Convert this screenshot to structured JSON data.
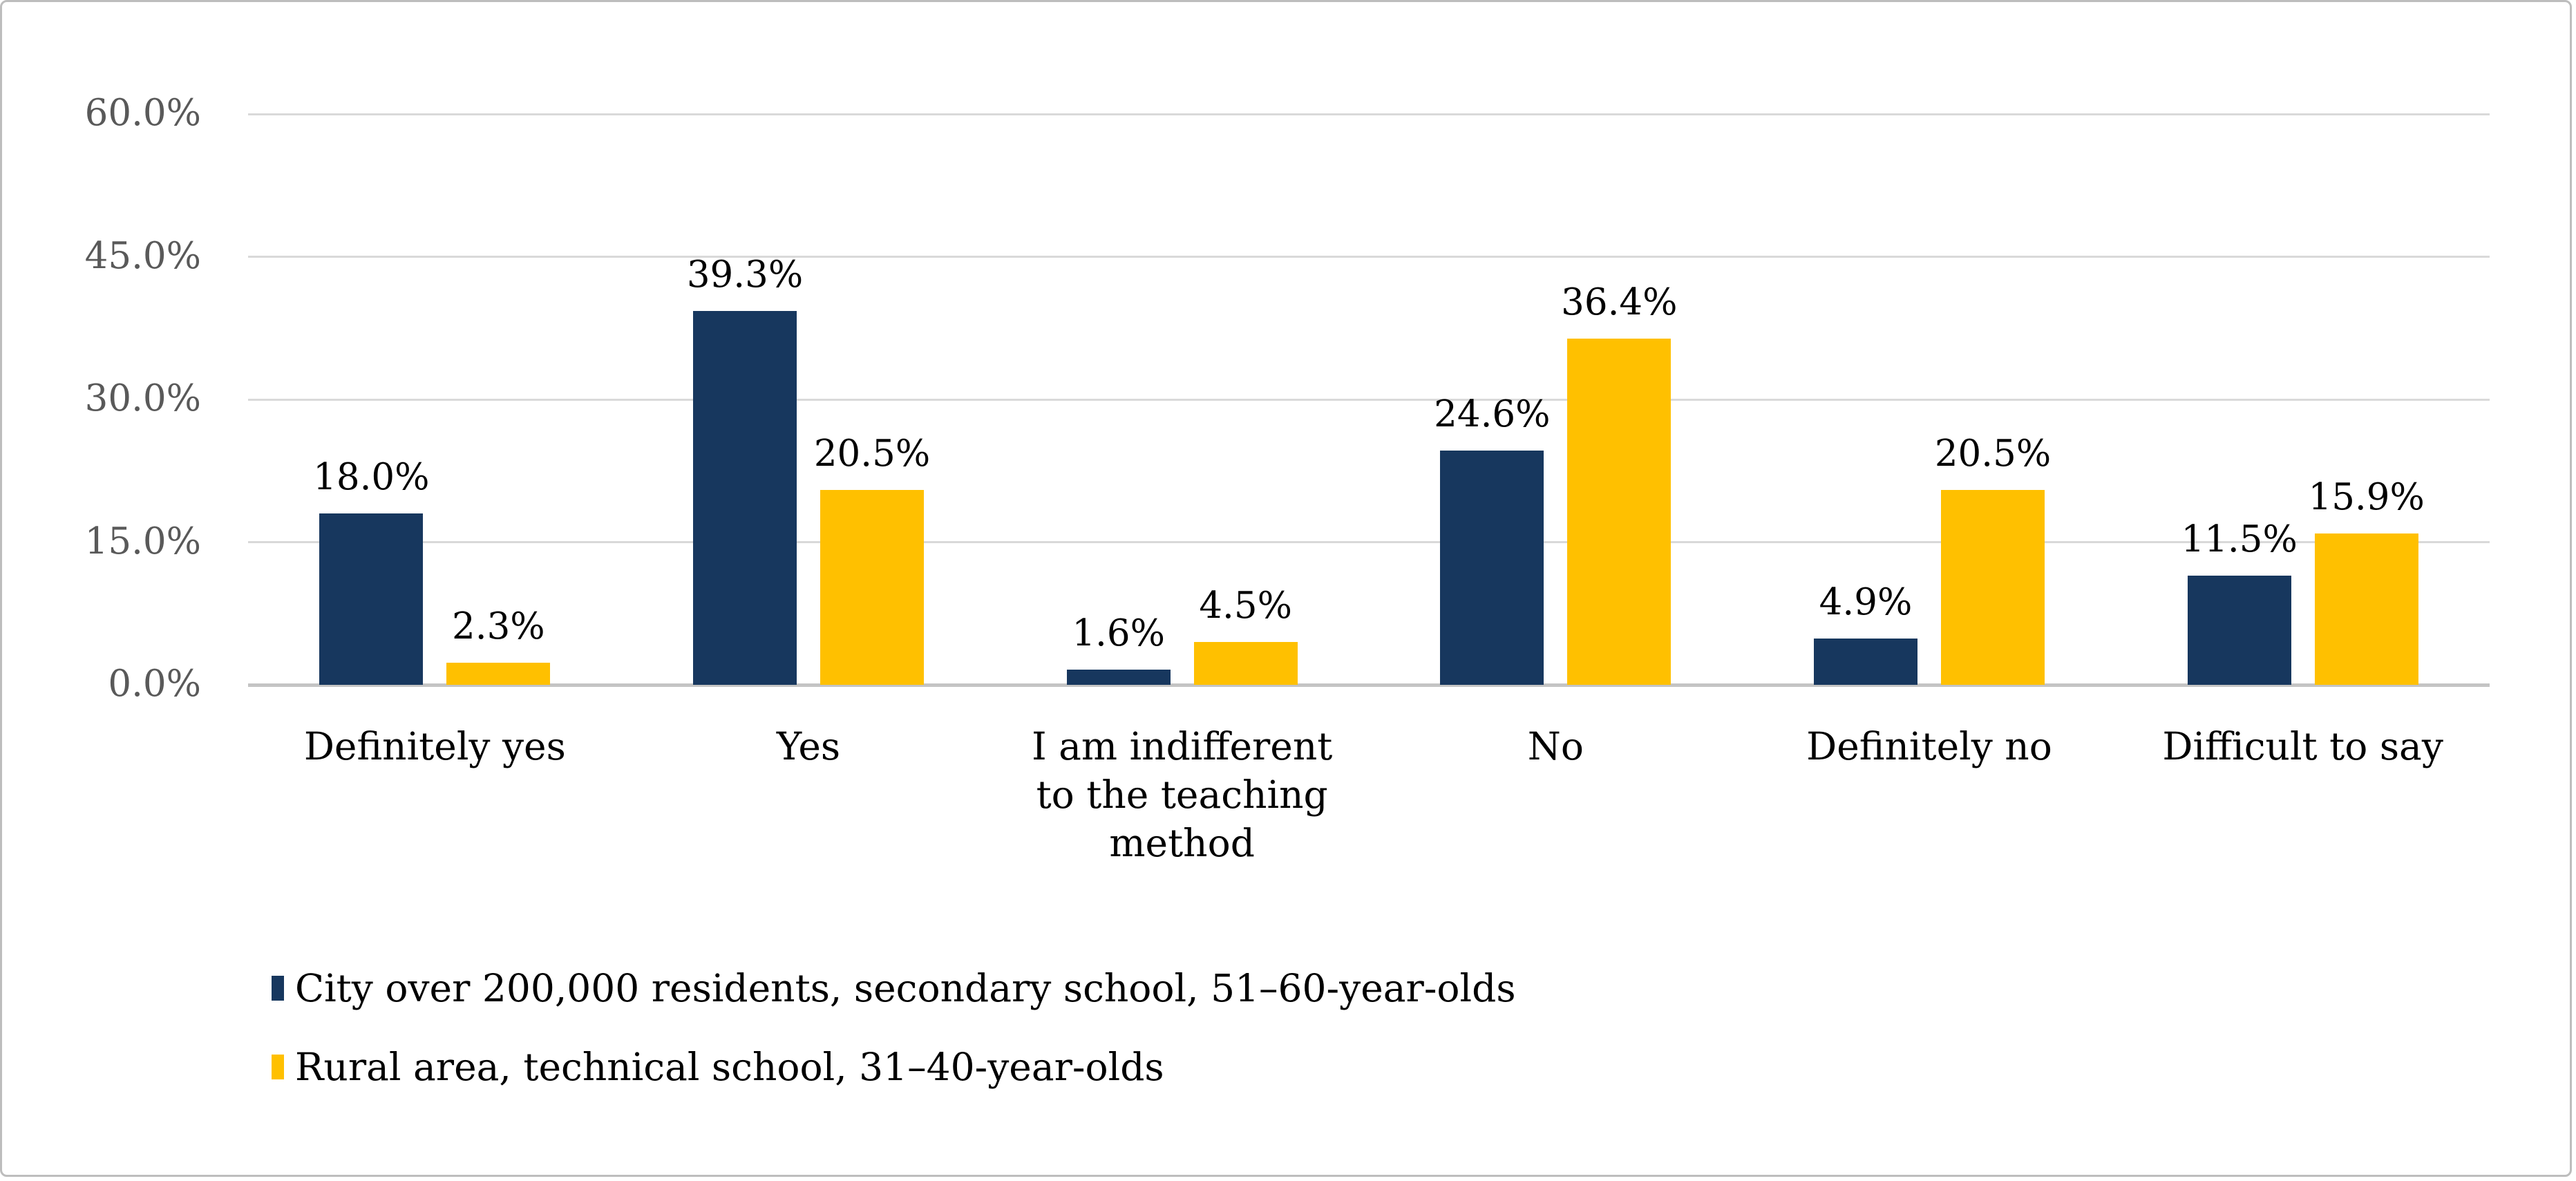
{
  "figure": {
    "background": "#FFFFFF",
    "border_color": "#BDBDBD"
  },
  "chart_data": {
    "type": "bar",
    "title": "",
    "xlabel": "",
    "ylabel": "",
    "categories": [
      "Definitely yes",
      "Yes",
      "I am indifferent to the teaching method",
      "No",
      "Definitely no",
      "Difficult to say"
    ],
    "category_lines": [
      [
        "Definitely yes"
      ],
      [
        "Yes"
      ],
      [
        "I am indifferent",
        "to the teaching",
        "method"
      ],
      [
        "No"
      ],
      [
        "Definitely no"
      ],
      [
        "Difficult to say"
      ]
    ],
    "series": [
      {
        "name": "City over 200,000 residents, secondary school, 51–60-year-olds",
        "color": "#17375E",
        "values": [
          18.0,
          39.3,
          1.6,
          24.6,
          4.9,
          11.5
        ],
        "labels": [
          "18.0%",
          "39.3%",
          "1.6%",
          "24.6%",
          "4.9%",
          "11.5%"
        ]
      },
      {
        "name": "Rural area, technical school, 31–40-year-olds",
        "color": "#FFC000",
        "values": [
          2.3,
          20.5,
          4.5,
          36.4,
          20.5,
          15.9
        ],
        "labels": [
          "2.3%",
          "20.5%",
          "4.5%",
          "36.4%",
          "20.5%",
          "15.9%"
        ]
      }
    ],
    "y_axis": {
      "min": 0,
      "max": 60,
      "step": 15,
      "tick_labels": [
        "0.0%",
        "15.0%",
        "30.0%",
        "45.0%",
        "60.0%"
      ]
    },
    "grid": true,
    "legend_position": "bottom-left",
    "colors": {
      "gridline": "#D9D9D9",
      "baseline": "#C4C4C4",
      "tick_text": "#595959",
      "label_text": "#000000"
    }
  }
}
